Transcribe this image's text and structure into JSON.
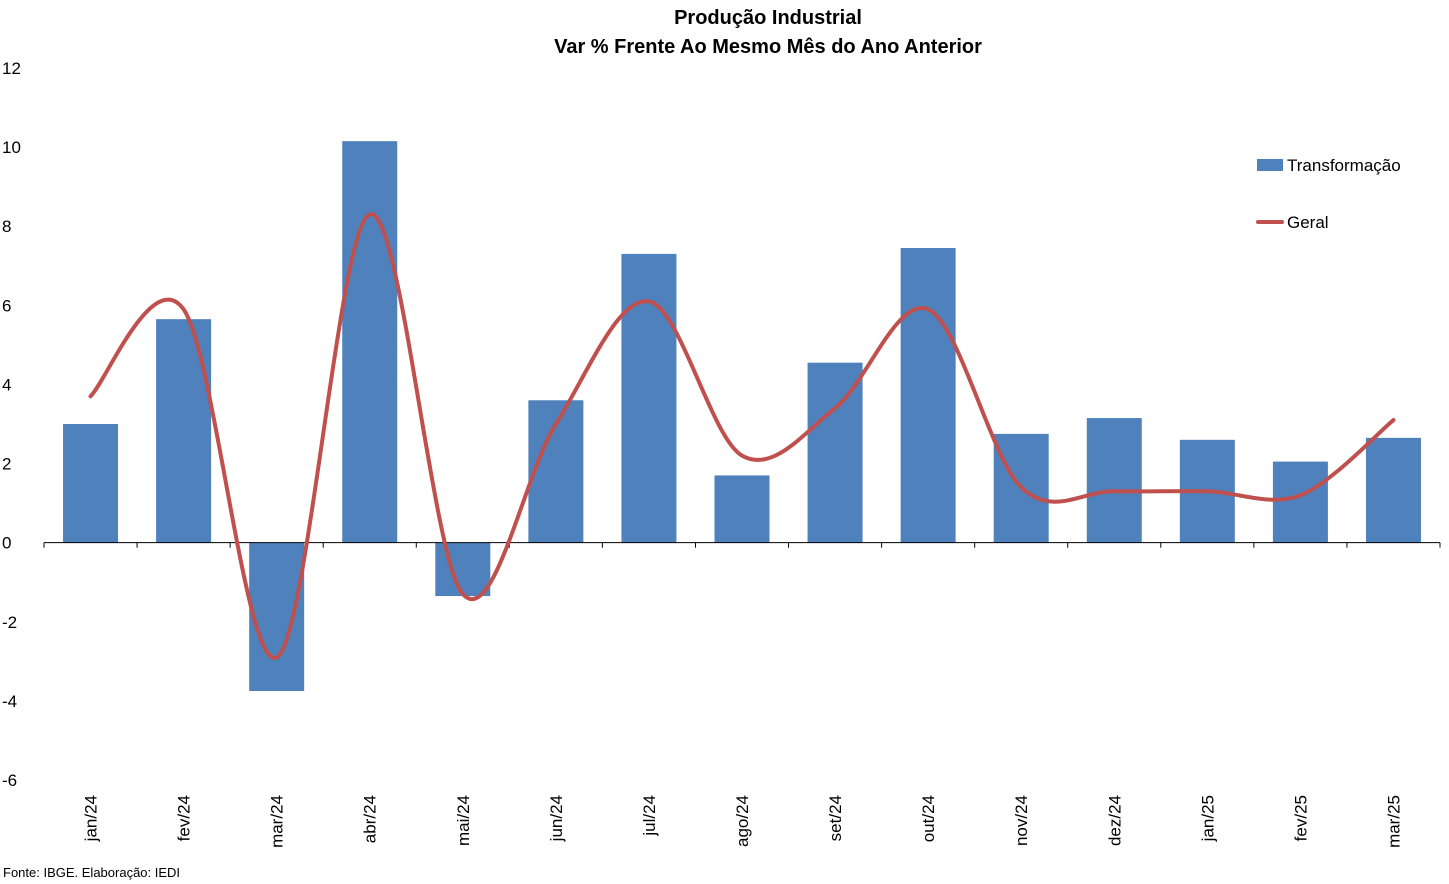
{
  "chart_data": {
    "type": "bar",
    "title": "Produção Industrial",
    "subtitle": "Var % Frente Ao Mesmo Mês do Ano Anterior",
    "categories": [
      "jan/24",
      "fev/24",
      "mar/24",
      "abr/24",
      "mai/24",
      "jun/24",
      "jul/24",
      "ago/24",
      "set/24",
      "out/24",
      "nov/24",
      "dez/24",
      "jan/25",
      "fev/25",
      "mar/25"
    ],
    "series": [
      {
        "name": "Transformação",
        "kind": "bar",
        "color": "#4f81bd",
        "values": [
          3.0,
          5.65,
          -3.75,
          10.15,
          -1.35,
          3.6,
          7.3,
          1.7,
          4.55,
          7.45,
          2.75,
          3.15,
          2.6,
          2.05,
          2.65
        ]
      },
      {
        "name": "Geral",
        "kind": "line",
        "color": "#c0504d",
        "values": [
          3.7,
          5.9,
          -2.9,
          8.3,
          -1.3,
          3.0,
          6.1,
          2.2,
          3.4,
          5.9,
          1.4,
          1.3,
          1.3,
          1.2,
          3.1
        ]
      }
    ],
    "yticks": [
      "12",
      "10",
      "8",
      "6",
      "4",
      "2",
      "0",
      "-2",
      "-4",
      "-6"
    ],
    "ylim": [
      -6,
      12
    ],
    "legend_position": "right",
    "grid": false
  },
  "source": "Fonte: IBGE. Elaboração: IEDI"
}
